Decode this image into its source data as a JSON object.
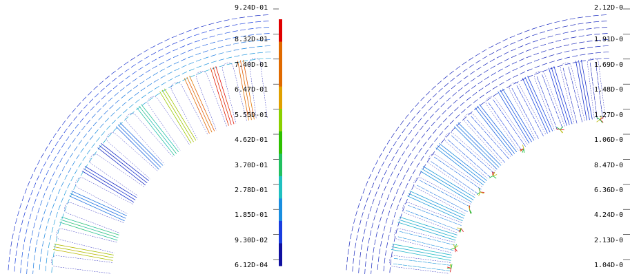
{
  "panels": [
    {
      "name": "left-flux-plot",
      "colorbar": {
        "labels": [
          "9.24D-01",
          "8.32D-01",
          "7.40D-01",
          "6.47D-01",
          "5.55D-01",
          "4.62D-01",
          "3.70D-01",
          "2.78D-01",
          "1.85D-01",
          "9.30D-02",
          "6.12D-04"
        ],
        "colors": [
          "#e00000",
          "#e06a00",
          "#e06a00",
          "#e0a000",
          "#8ad000",
          "#2ec000",
          "#21c060",
          "#20c0c0",
          "#1a8ee0",
          "#1a3ee0",
          "#1010a0"
        ]
      }
    },
    {
      "name": "right-flux-plot",
      "colorbar": {
        "labels": [
          "2.12D-0",
          "1.91D-0",
          "1.69D-0",
          "1.48D-0",
          "1.27D-0",
          "1.06D-0",
          "8.47D-0",
          "6.36D-0",
          "4.24D-0",
          "2.13D-0",
          "1.04D-0"
        ]
      }
    }
  ]
}
